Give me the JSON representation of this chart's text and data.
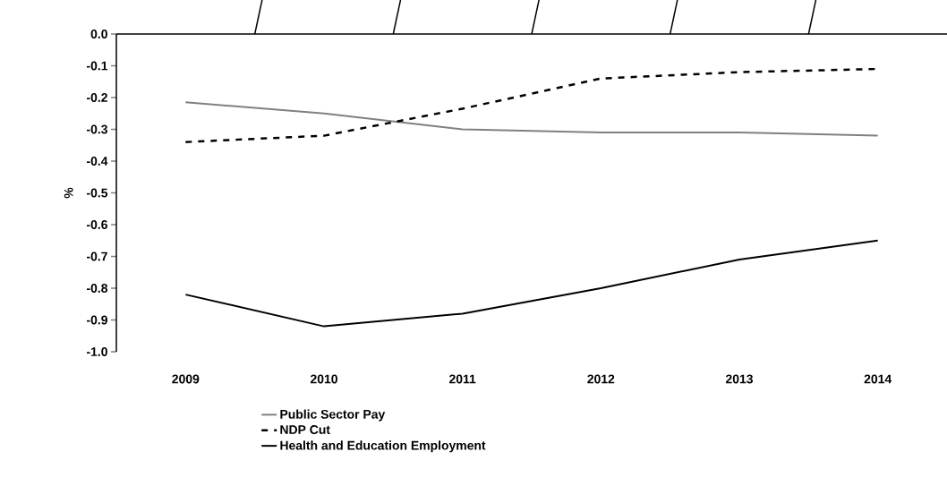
{
  "chart_data": {
    "type": "line",
    "ylabel": "%",
    "categories": [
      "2009",
      "2010",
      "2011",
      "2012",
      "2013",
      "2014"
    ],
    "series": [
      {
        "name": "Public Sector Pay",
        "color": "#808080",
        "line_style": "solid",
        "values": [
          -0.215,
          -0.25,
          -0.3,
          -0.31,
          -0.31,
          -0.32
        ]
      },
      {
        "name": "NDP Cut",
        "color": "#000000",
        "line_style": "dashed",
        "values": [
          -0.34,
          -0.32,
          -0.235,
          -0.14,
          -0.12,
          -0.11
        ]
      },
      {
        "name": "Health and Education Employment",
        "color": "#000000",
        "line_style": "solid",
        "values": [
          -0.82,
          -0.92,
          -0.88,
          -0.8,
          -0.71,
          -0.65
        ]
      }
    ],
    "ylim": [
      -1.0,
      0.0
    ],
    "yticks": [
      {
        "value": -1.0,
        "label": "-1.0"
      },
      {
        "value": -0.9,
        "label": "-0.9"
      },
      {
        "value": -0.8,
        "label": "-0.8"
      },
      {
        "value": -0.7,
        "label": "-0.7"
      },
      {
        "value": -0.6,
        "label": "-0.6"
      },
      {
        "value": -0.5,
        "label": "-0.5"
      },
      {
        "value": -0.4,
        "label": "-0.4"
      },
      {
        "value": -0.3,
        "label": "-0.3"
      },
      {
        "value": -0.2,
        "label": "-0.2"
      },
      {
        "value": -0.1,
        "label": "-0.1"
      },
      {
        "value": 0.0,
        "label": "0.0"
      }
    ],
    "grid": false,
    "legend": "bottom",
    "marker": "none"
  }
}
